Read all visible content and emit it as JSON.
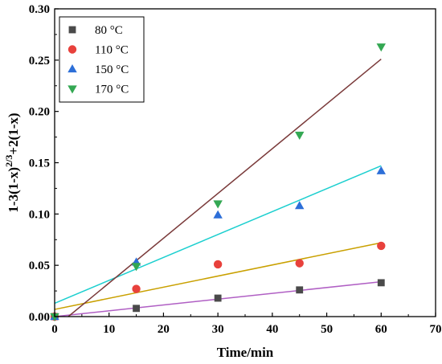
{
  "chart_data": {
    "type": "scatter",
    "xlabel": "Time/min",
    "ylabel": "1-3(1-x)^(2/3)+2(1-x)",
    "ylabel_parts": {
      "base": "1-3(1-x)",
      "exponent": "2/3",
      "tail": "+2(1-x)"
    },
    "xlim": [
      0,
      70
    ],
    "ylim": [
      0,
      0.3
    ],
    "xticks": [
      0,
      10,
      20,
      30,
      40,
      50,
      60,
      70
    ],
    "yticks": [
      0.0,
      0.05,
      0.1,
      0.15,
      0.2,
      0.25,
      0.3
    ],
    "xtick_labels": [
      "0",
      "10",
      "20",
      "30",
      "40",
      "50",
      "60",
      "70"
    ],
    "ytick_labels": [
      "0.00",
      "0.05",
      "0.10",
      "0.15",
      "0.20",
      "0.25",
      "0.30"
    ],
    "legend_position": "top-left",
    "grid": false,
    "series": [
      {
        "name": "80 °C",
        "marker": "square",
        "color": "#4a4a4a",
        "line_color": "#b05fc4",
        "x": [
          0,
          15,
          30,
          45,
          60
        ],
        "y": [
          0.0,
          0.008,
          0.018,
          0.026,
          0.033
        ],
        "fit": {
          "x": [
            0,
            60
          ],
          "y": [
            0.0,
            0.034
          ]
        }
      },
      {
        "name": "110 °C",
        "marker": "circle",
        "color": "#e8413c",
        "line_color": "#c9a000",
        "x": [
          0,
          15,
          30,
          45,
          60
        ],
        "y": [
          0.0,
          0.027,
          0.051,
          0.052,
          0.069
        ],
        "fit": {
          "x": [
            0,
            60
          ],
          "y": [
            0.007,
            0.072
          ]
        }
      },
      {
        "name": "150 °C",
        "marker": "triangle-up",
        "color": "#2d6fd8",
        "line_color": "#1ccfcf",
        "x": [
          0,
          15,
          30,
          45,
          60
        ],
        "y": [
          0.0,
          0.053,
          0.099,
          0.108,
          0.142
        ],
        "fit": {
          "x": [
            0,
            60
          ],
          "y": [
            0.013,
            0.147
          ]
        }
      },
      {
        "name": "170 °C",
        "marker": "triangle-down",
        "color": "#34a853",
        "line_color": "#7a3a3a",
        "x": [
          0,
          15,
          30,
          45,
          60
        ],
        "y": [
          0.0,
          0.049,
          0.11,
          0.177,
          0.263
        ],
        "fit": {
          "x": [
            2.5,
            60
          ],
          "y": [
            0.0,
            0.251
          ]
        }
      }
    ]
  }
}
